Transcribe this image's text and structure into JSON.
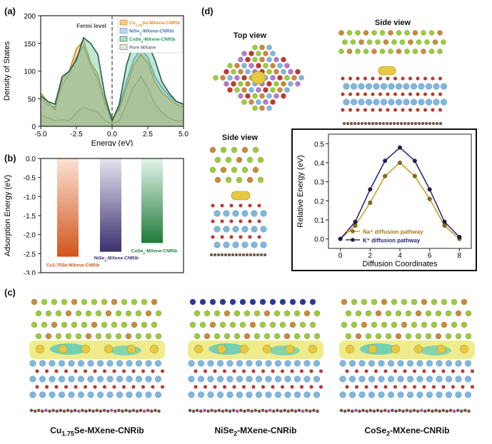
{
  "panels": {
    "a_label": "(a)",
    "b_label": "(b)",
    "c_label": "(c)",
    "d_label": "(d)"
  },
  "panel_d": {
    "top_view_title": "Top view",
    "side_view_title_1": "Side view",
    "side_view_title_2": "Side view"
  },
  "panel_c": {
    "captions": [
      {
        "prefix": "Cu",
        "sub": "1.75",
        "suffix": "Se-MXene-CNRib"
      },
      {
        "prefix": "NiSe",
        "sub": "2",
        "suffix": "-MXene-CNRib"
      },
      {
        "prefix": "CoSe",
        "sub": "2",
        "suffix": "-MXene-CNRib"
      }
    ]
  },
  "colors": {
    "cu_color": "#f2a33a",
    "ni_color": "#9fb8e0",
    "co_color": "#6fc9a0",
    "mxene_color": "#d9d4c4",
    "na_color": "#c9a227",
    "k_color": "#2b2b7a",
    "se_green": "#9ccb3b",
    "ti_blue": "#7fb6de",
    "o_red": "#c0392b",
    "c_brown": "#7a5a48",
    "na_yellow": "#e7c840"
  },
  "chart_data": [
    {
      "type": "area",
      "panel": "(a)",
      "xlabel": "Energy (eV)",
      "ylabel": "Density of States",
      "xlim": [
        -5.0,
        5.0
      ],
      "ylim": [
        0,
        200
      ],
      "xticks": [
        "-5.0",
        "-2.5",
        "0.0",
        "2.5",
        "5.0"
      ],
      "yticks": [
        "0",
        "50",
        "100",
        "150",
        "200"
      ],
      "annotation": "Fermi level",
      "legend_position": "top-right",
      "x": [
        -5.0,
        -4.5,
        -4.0,
        -3.5,
        -3.0,
        -2.5,
        -2.0,
        -1.5,
        -1.0,
        -0.5,
        0.0,
        0.5,
        1.0,
        1.5,
        2.0,
        2.5,
        3.0,
        3.5,
        4.0,
        4.5,
        5.0
      ],
      "series": [
        {
          "name": "Cu1.75Se-MXene-CNRib",
          "legend_prefix": "Cu",
          "legend_sub": "1.75",
          "legend_suffix": "Se-MXene-CNRib",
          "values": [
            60,
            45,
            30,
            85,
            100,
            140,
            155,
            115,
            95,
            45,
            15,
            30,
            70,
            110,
            130,
            115,
            80,
            60,
            50,
            40,
            35
          ]
        },
        {
          "name": "NiSe2-MXene-CNRib",
          "legend_prefix": "NiSe",
          "legend_sub": "2",
          "legend_suffix": "-MXene-CNRib",
          "values": [
            50,
            40,
            35,
            75,
            95,
            125,
            145,
            110,
            85,
            40,
            10,
            35,
            80,
            120,
            140,
            125,
            90,
            70,
            55,
            45,
            40
          ]
        },
        {
          "name": "CoSe2-MXene-CNRib",
          "legend_prefix": "CoSe",
          "legend_sub": "2",
          "legend_suffix": "-MXene-CNRib",
          "values": [
            55,
            45,
            40,
            90,
            100,
            120,
            160,
            150,
            130,
            55,
            10,
            40,
            110,
            150,
            165,
            150,
            120,
            80,
            60,
            45,
            40
          ]
        },
        {
          "name": "Pure MXane",
          "legend_prefix": "Pure MXane",
          "legend_sub": "",
          "legend_suffix": "",
          "values": [
            20,
            15,
            10,
            12,
            10,
            25,
            35,
            30,
            25,
            10,
            5,
            10,
            40,
            70,
            90,
            70,
            40,
            25,
            15,
            10,
            10
          ]
        }
      ]
    },
    {
      "type": "bar",
      "panel": "(b)",
      "ylabel": "Adsorption Energy (eV)",
      "ylim": [
        -3.0,
        0.0
      ],
      "yticks": [
        "0.0",
        "-0.5",
        "-1.0",
        "-1.5",
        "-2.0",
        "-2.5",
        "-3.0"
      ],
      "categories": [
        "Cu1.75Se-MXene-CNRib",
        "NiSe2-MXene-CNRib",
        "CoSe2-MXene-CNRib"
      ],
      "category_labels": [
        {
          "prefix": "Cu1.75Se-MXene-CNRib",
          "sub": "",
          "suffix": ""
        },
        {
          "prefix": "NiSe",
          "sub": "2",
          "suffix": "-MXene-CNRib"
        },
        {
          "prefix": "CoSe",
          "sub": "2",
          "suffix": "-MXene-CNRib"
        }
      ],
      "values": [
        -2.58,
        -2.45,
        -2.22
      ],
      "bar_colors": [
        "#d2541a",
        "#3b2f6e",
        "#1f7a3a"
      ],
      "bar_fade_colors": [
        "#fbe3d6",
        "#e6e4f0",
        "#e3f5e9"
      ],
      "label_colors": [
        "#d2541a",
        "#3b2f6e",
        "#1f7a3a"
      ]
    },
    {
      "type": "line",
      "panel": "(d)",
      "xlabel": "Diffusion Coordinates",
      "ylabel": "Relative Energy (eV)",
      "xlim": [
        -0.8,
        8.8
      ],
      "ylim": [
        -0.05,
        0.55
      ],
      "xticks": [
        "0",
        "2",
        "4",
        "6",
        "8"
      ],
      "yticks": [
        "0.0",
        "0.1",
        "0.2",
        "0.3",
        "0.4",
        "0.5"
      ],
      "legend_position": "bottom-right",
      "x": [
        0,
        1,
        2,
        3,
        4,
        5,
        6,
        7,
        8
      ],
      "series": [
        {
          "name": "Na⁺ diffusion pathway",
          "values": [
            0.0,
            0.07,
            0.19,
            0.33,
            0.4,
            0.33,
            0.21,
            0.07,
            0.0
          ]
        },
        {
          "name": "K⁺ diffusion pathway",
          "values": [
            0.0,
            0.09,
            0.26,
            0.41,
            0.48,
            0.41,
            0.26,
            0.09,
            0.01
          ]
        }
      ]
    }
  ]
}
